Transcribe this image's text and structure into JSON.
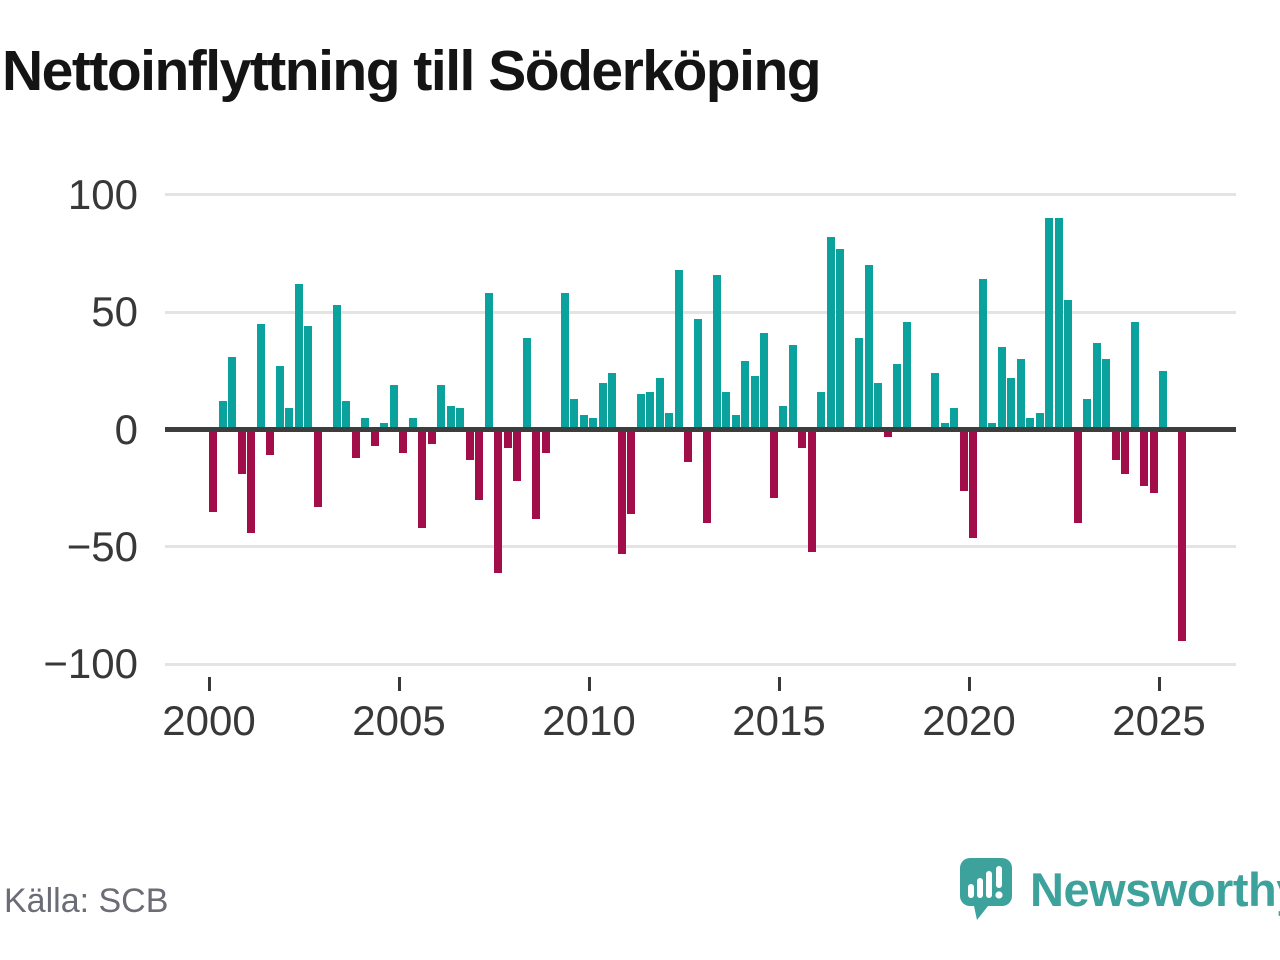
{
  "chart_data": {
    "type": "bar",
    "title": "Nettoinflyttning till Söderköping",
    "source": "Källa: SCB",
    "frequency": "quarterly",
    "period_start": "2000 Q1",
    "period_end": "2025 Q3",
    "values": [
      -35,
      12,
      31,
      -19,
      -44,
      45,
      -11,
      27,
      9,
      62,
      44,
      -33,
      0,
      53,
      12,
      -12,
      5,
      -7,
      3,
      19,
      -10,
      5,
      -42,
      -6,
      19,
      10,
      9,
      -13,
      -30,
      58,
      -61,
      -8,
      -22,
      39,
      -38,
      -10,
      0,
      58,
      13,
      6,
      5,
      20,
      24,
      -53,
      -36,
      15,
      16,
      22,
      7,
      68,
      -14,
      47,
      -40,
      66,
      16,
      6,
      29,
      23,
      41,
      -29,
      10,
      36,
      -8,
      -52,
      16,
      82,
      77,
      0,
      39,
      70,
      20,
      -3,
      28,
      46,
      0,
      0,
      24,
      3,
      9,
      -26,
      -46,
      64,
      3,
      35,
      22,
      30,
      5,
      7,
      90,
      90,
      55,
      -40,
      13,
      37,
      30,
      -13,
      -19,
      46,
      -24,
      -27,
      25,
      0,
      -90
    ],
    "x_tick_labels": [
      "2000",
      "2005",
      "2010",
      "2015",
      "2020",
      "2025"
    ],
    "y_ticks": [
      100,
      50,
      0,
      -50,
      -100
    ],
    "y_tick_labels": [
      "100",
      "50",
      "0",
      "−50",
      "−100"
    ],
    "ylim": [
      -100,
      100
    ],
    "grid": "horizontal",
    "legend": "none",
    "positive_color": "#0ba29e",
    "negative_color": "#a10e49"
  },
  "branding": {
    "logo_text": "Newsworthy",
    "logo_color": "#3da29c"
  }
}
